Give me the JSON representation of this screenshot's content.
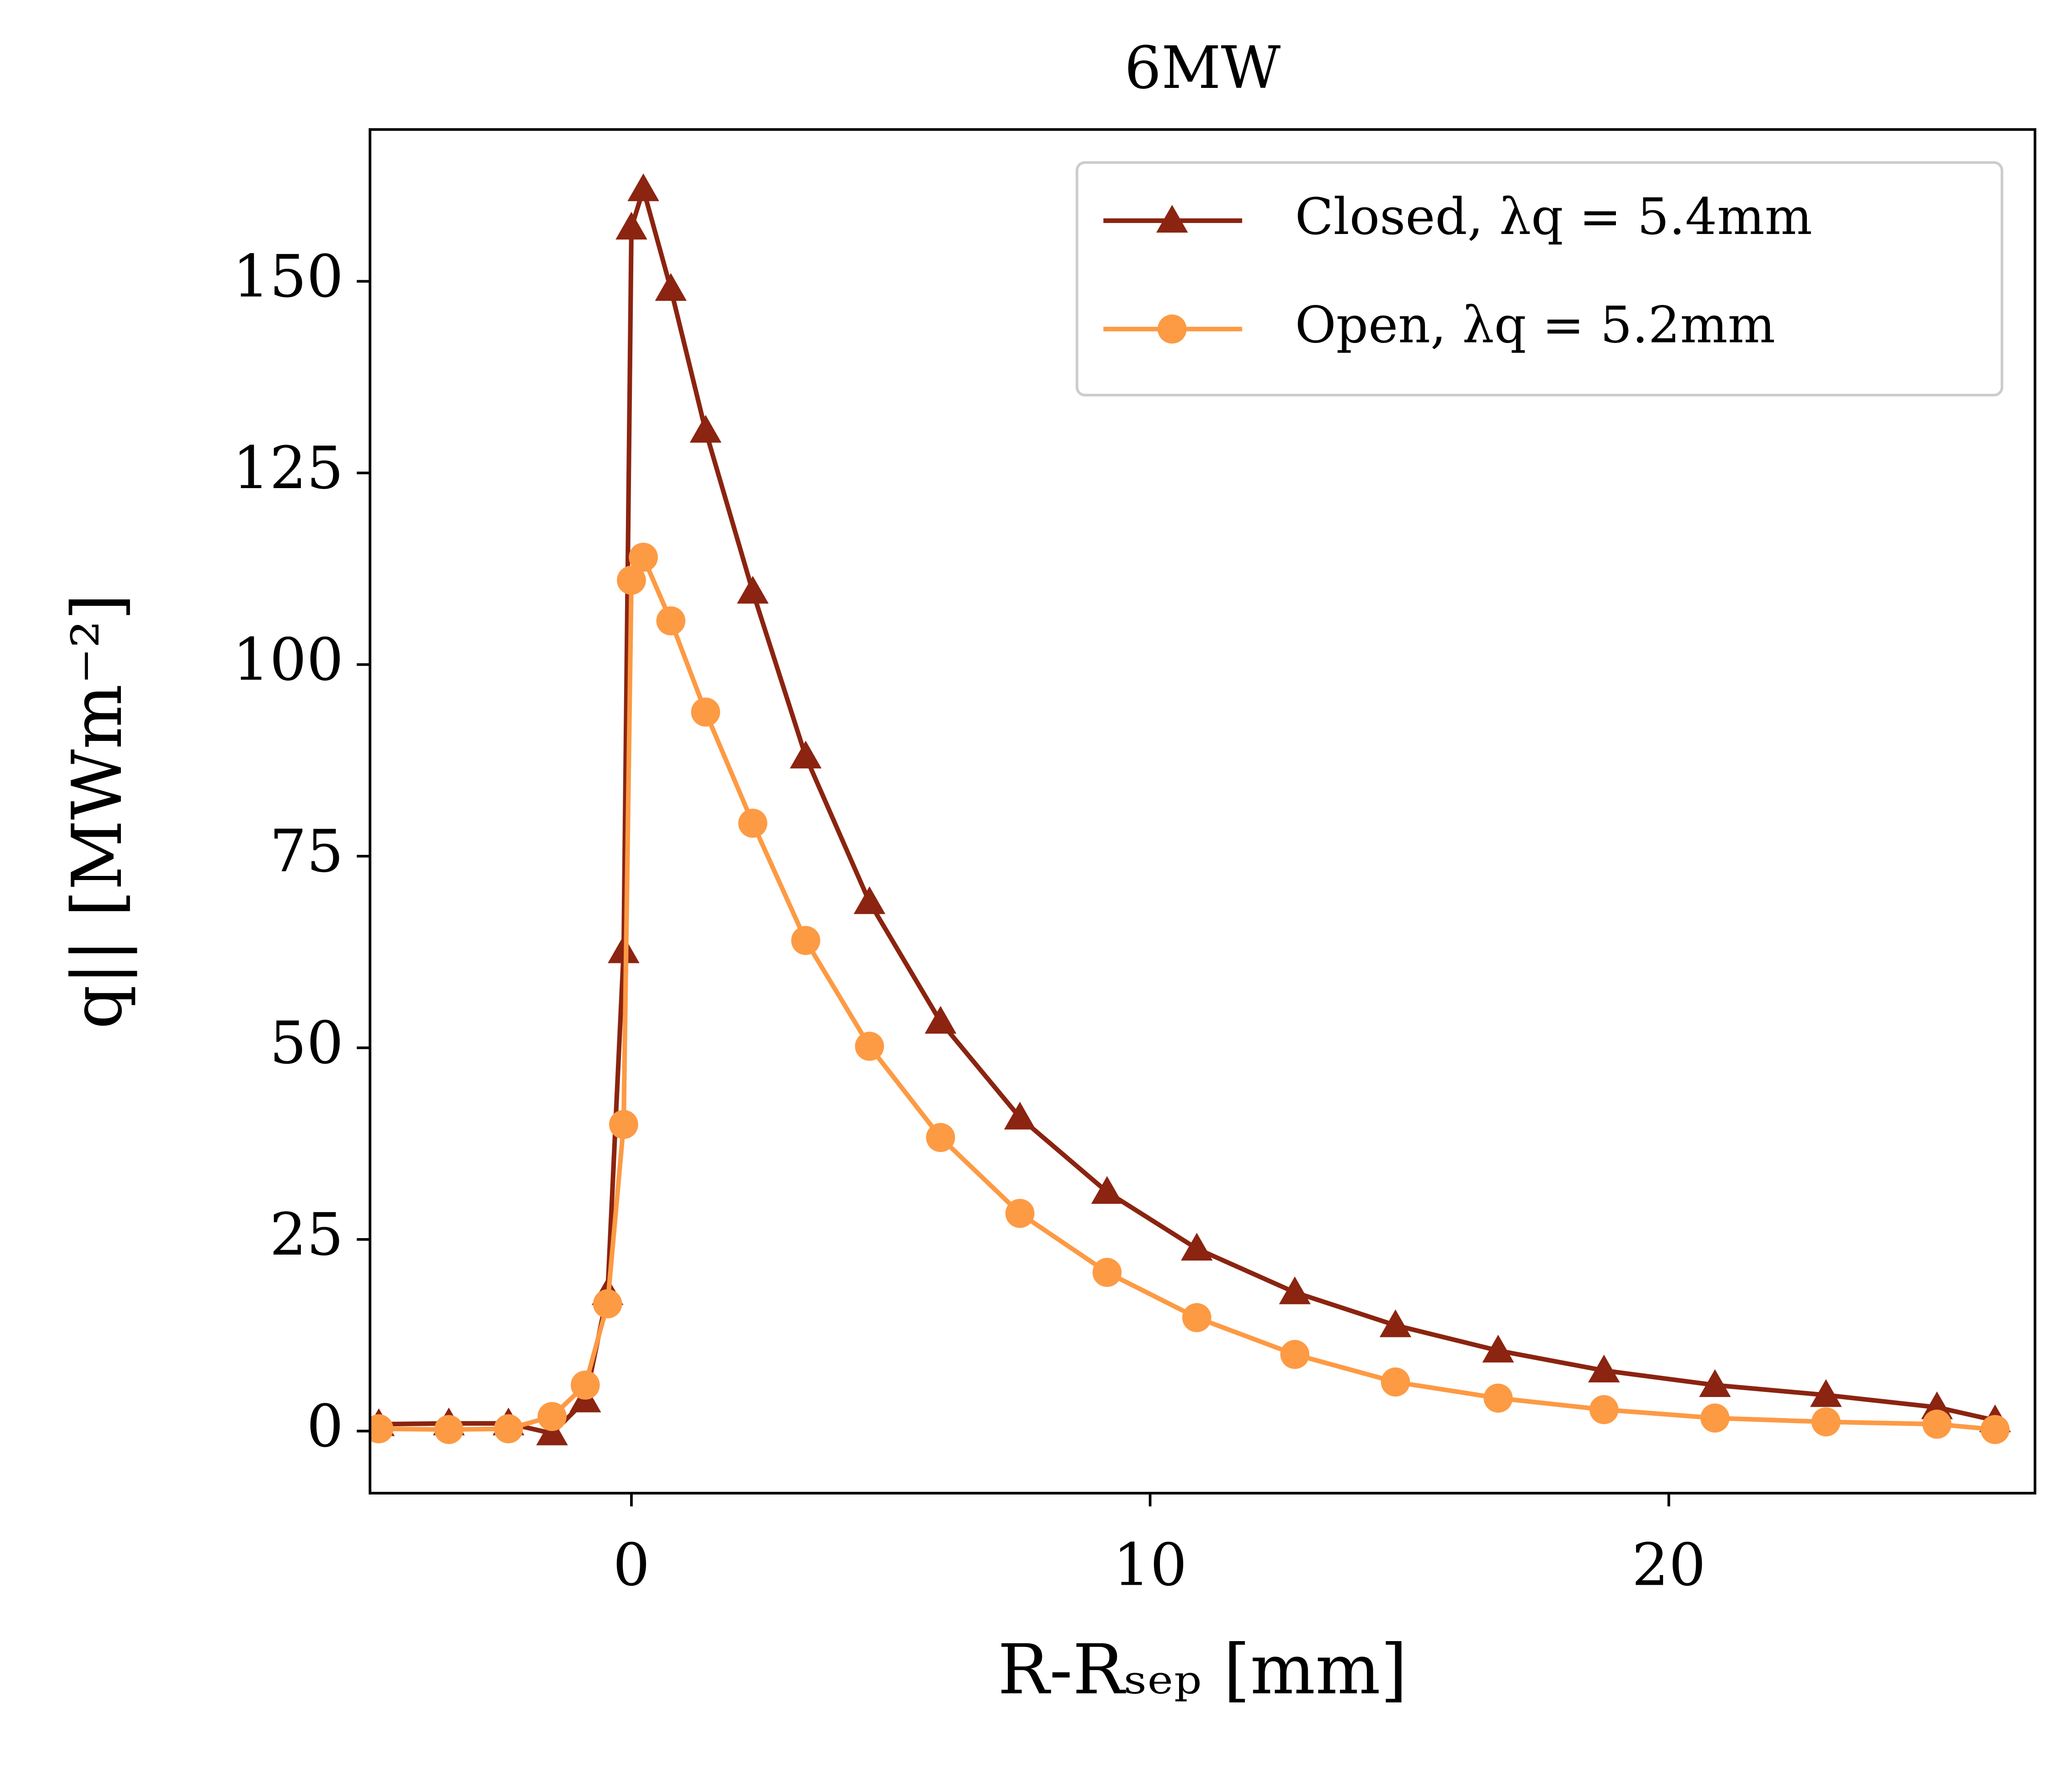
{
  "chart_data": {
    "type": "line",
    "title": "6MW",
    "x_label": "R-Rₛₑₚ [mm]",
    "y_label": "q|| [MWm⁻²]",
    "x": [
      -4.87,
      -3.52,
      -2.37,
      -1.53,
      -0.89,
      -0.46,
      -0.15,
      0.0,
      0.23,
      0.76,
      1.43,
      2.34,
      3.36,
      4.59,
      5.96,
      7.49,
      9.17,
      10.9,
      12.79,
      14.73,
      16.71,
      18.75,
      20.89,
      23.03,
      25.17,
      26.29
    ],
    "series": [
      {
        "name": "Closed, λq = 5.4mm",
        "color": "#8b2410",
        "marker": "triangle",
        "values": [
          0.9,
          1,
          1,
          -0.3,
          4,
          18,
          62.6,
          157,
          162,
          149,
          130.5,
          109.5,
          88,
          69,
          53.4,
          40.9,
          31.2,
          23.8,
          18.1,
          13.8,
          10.5,
          7.9,
          6,
          4.7,
          3.1,
          1.4
        ]
      },
      {
        "name": "Open, λq = 5.2mm",
        "color": "#fd9a44",
        "marker": "circle",
        "values": [
          0.3,
          0.2,
          0.3,
          1.9,
          6,
          16.6,
          40,
          111,
          114,
          105.7,
          93.8,
          79.3,
          64,
          50.2,
          38.3,
          28.4,
          20.7,
          14.8,
          10,
          6.4,
          4.3,
          2.8,
          1.7,
          1.2,
          0.9,
          0.2
        ]
      }
    ],
    "xlim": [
      -5.04,
      27.06
    ],
    "ylim": [
      -8.1,
      169.8
    ],
    "xticks": [
      0,
      10,
      20
    ],
    "yticks": [
      0,
      25,
      50,
      75,
      100,
      125,
      150
    ],
    "legend": "upper right",
    "grid": false
  }
}
